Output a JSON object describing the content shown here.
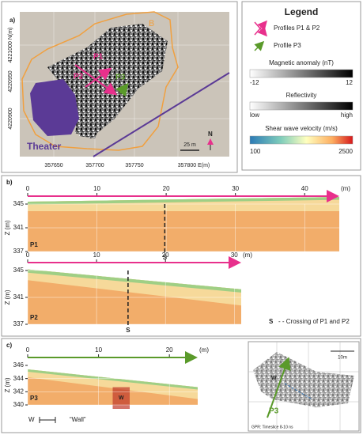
{
  "panel_a": {
    "label": "a)",
    "y_labels": [
      "4221000 N(m)",
      "4220950",
      "4220900"
    ],
    "x_labels": [
      "357650",
      "357700",
      "357750",
      "357800 E(m)"
    ],
    "area": "B",
    "p1": "P1",
    "p2": "P2",
    "p3": "P3",
    "theater": "Theater",
    "north": "N",
    "scale": "25 m"
  },
  "legend": {
    "title": "Legend",
    "profiles_p1_p2": "Profiles P1 & P2",
    "profile_p3": "Profile P3",
    "magnetic": "Magnetic anomaly (nT)",
    "magnetic_min": "-12",
    "magnetic_max": "12",
    "reflectivity": "Reflectivity",
    "reflectivity_min": "low",
    "reflectivity_max": "high",
    "velocity": "Shear wave velocity (m/s)",
    "velocity_min": "100",
    "velocity_max": "2500"
  },
  "panel_b": {
    "label": "b)",
    "axis_label": "Z (m)",
    "crossing_symbol": "S",
    "crossing_note": "- -  Crossing of P1 and P2",
    "p1": {
      "name": "P1",
      "crossing": "S",
      "unit": "(m)",
      "xlim": [
        0,
        45
      ],
      "xticks": [
        0,
        10,
        20,
        30,
        40
      ],
      "ylim": [
        337,
        345
      ],
      "yticks": [
        345,
        341,
        337
      ]
    },
    "p2": {
      "name": "P2",
      "crossing": "S",
      "unit": "(m)",
      "xlim": [
        0,
        31
      ],
      "xticks": [
        0,
        10,
        20,
        30
      ],
      "ylim": [
        337,
        345
      ],
      "yticks": [
        345,
        341,
        337
      ]
    }
  },
  "panel_c": {
    "label": "c)",
    "axis_label": "Z (m)",
    "wall_symbol": "W",
    "wall_note": "“Wall”",
    "p3": {
      "name": "P3",
      "wall": "W",
      "unit": "(m)",
      "xlim": [
        0,
        24
      ],
      "xticks": [
        0,
        10,
        20
      ],
      "ylim": [
        340,
        346
      ],
      "yticks": [
        346,
        344,
        342,
        340
      ]
    },
    "inset": {
      "scale": "10m",
      "wall": "W",
      "profile": "P3",
      "caption": "GPR: Timeslice 8-10 ns"
    }
  }
}
